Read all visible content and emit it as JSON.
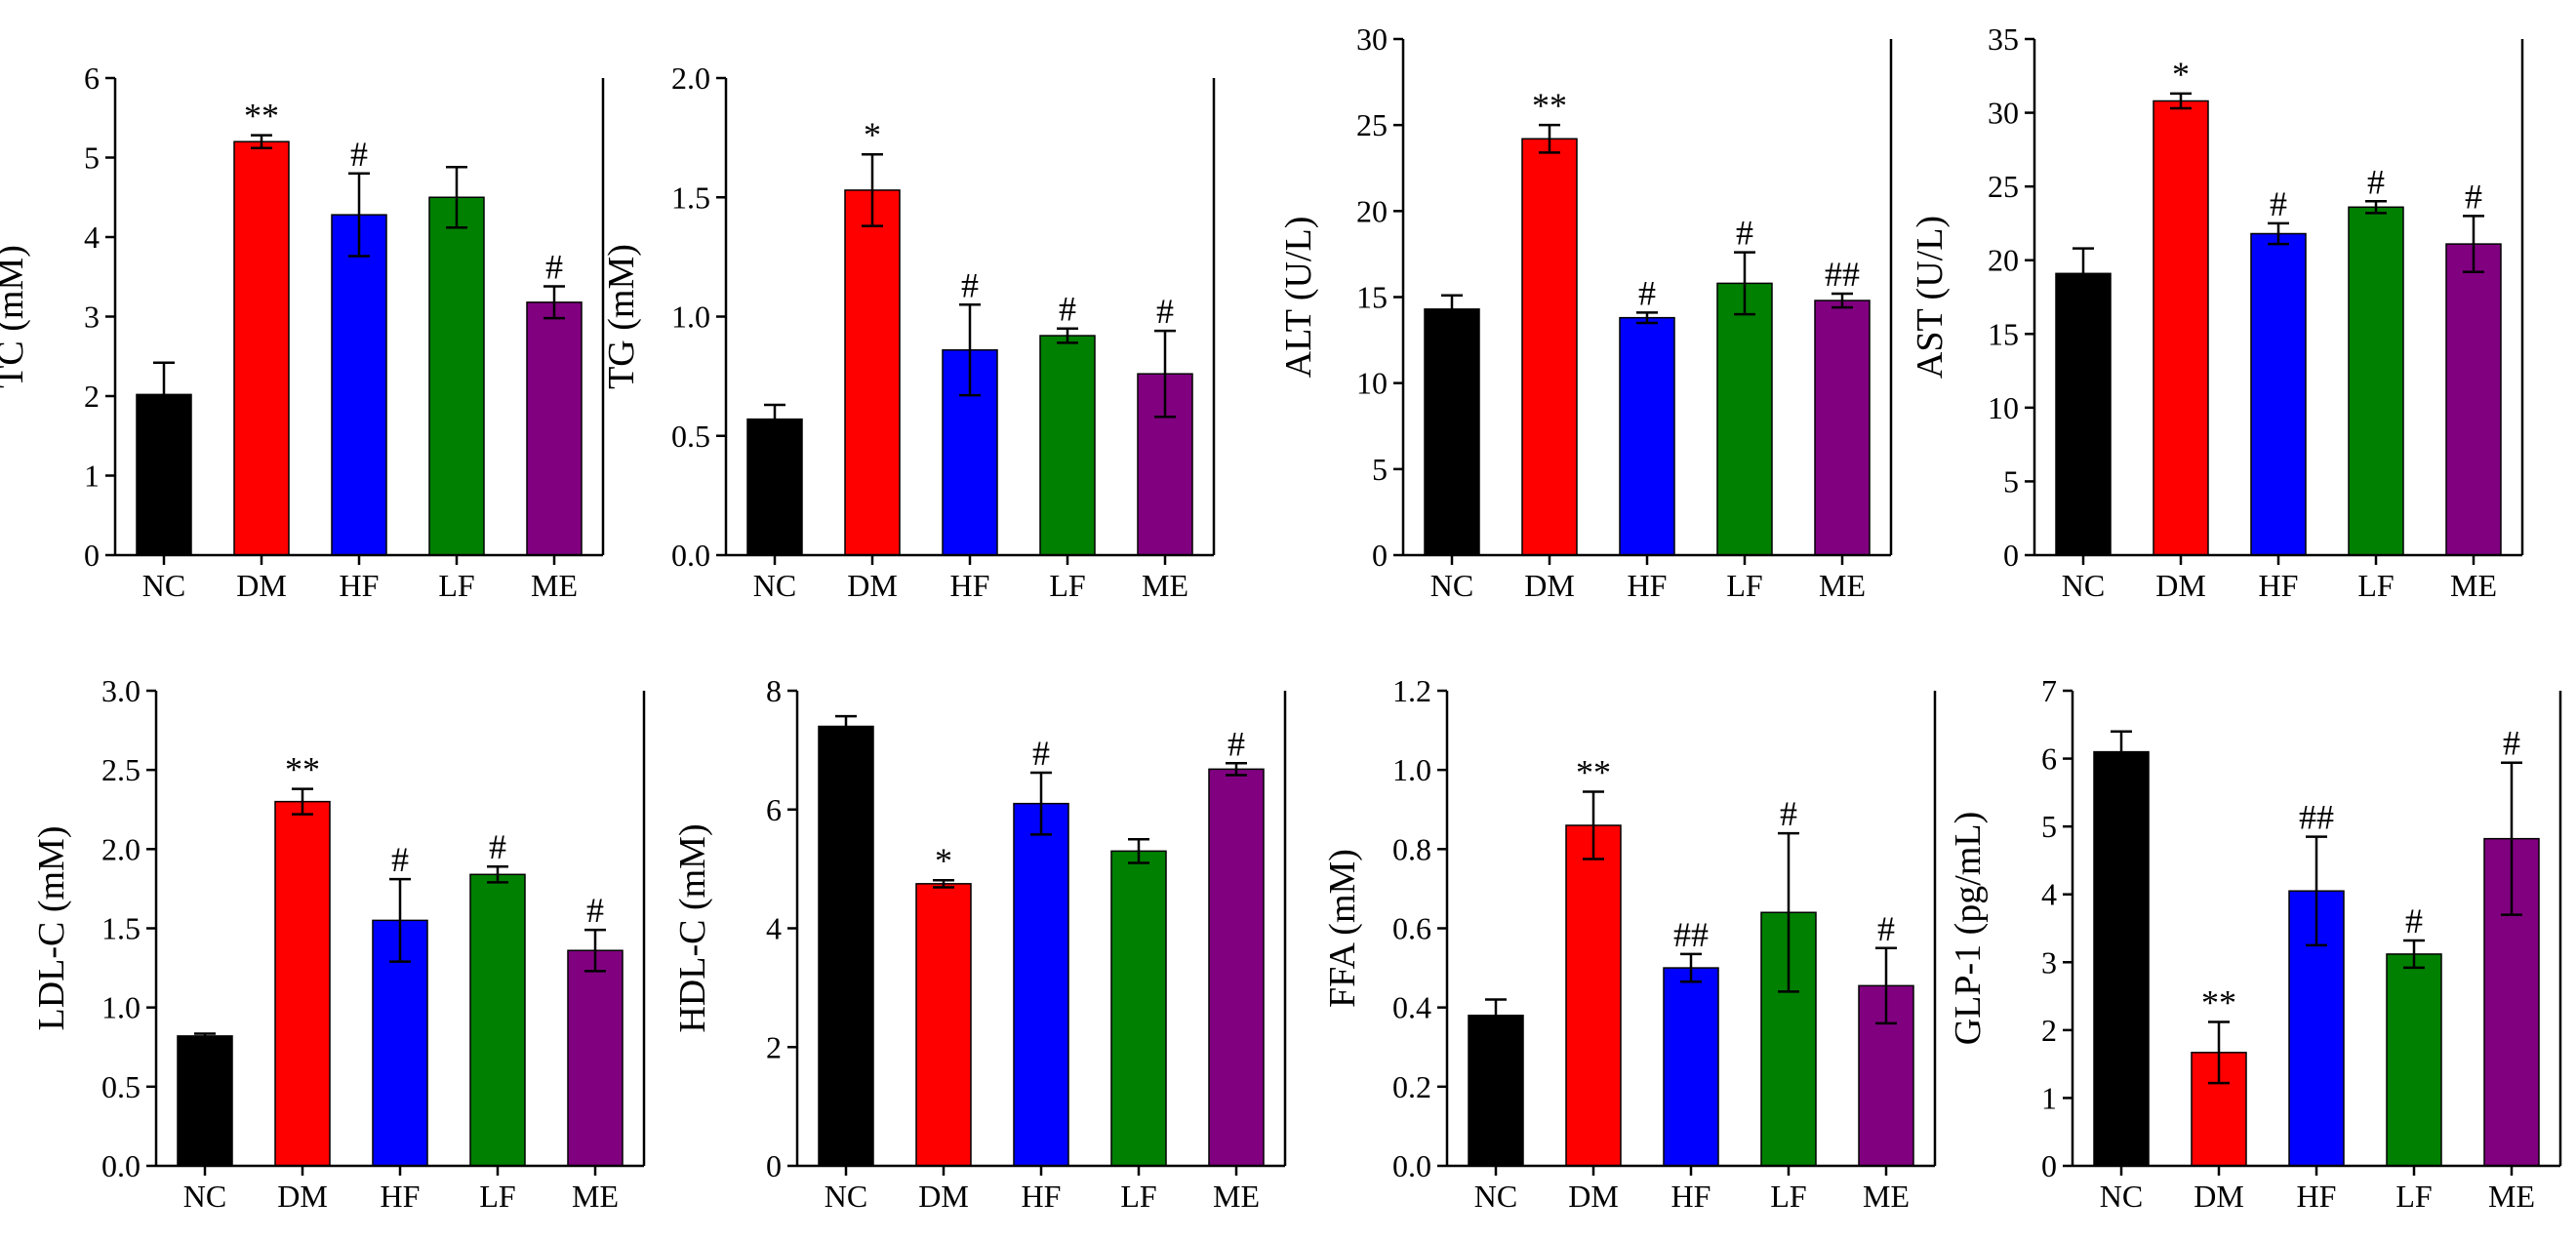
{
  "figure": {
    "colors": {
      "NC": "#000000",
      "DM": "#ff0000",
      "HF": "#0000ff",
      "LF": "#008000",
      "ME": "#800080"
    }
  },
  "chart_data": [
    {
      "type": "bar",
      "ylabel": "TC (mM)",
      "categories": [
        "NC",
        "DM",
        "HF",
        "LF",
        "ME"
      ],
      "values": [
        2.02,
        5.2,
        4.28,
        4.5,
        3.18
      ],
      "errors": [
        0.4,
        0.08,
        0.52,
        0.38,
        0.2
      ],
      "significance": [
        "",
        "**",
        "#",
        "",
        "#"
      ],
      "ylim": [
        0,
        6
      ],
      "yticks": [
        "0",
        "1",
        "2",
        "3",
        "4",
        "5",
        "6"
      ]
    },
    {
      "type": "bar",
      "ylabel": "TG (mM)",
      "categories": [
        "NC",
        "DM",
        "HF",
        "LF",
        "ME"
      ],
      "values": [
        0.57,
        1.53,
        0.86,
        0.92,
        0.76
      ],
      "errors": [
        0.06,
        0.15,
        0.19,
        0.03,
        0.18
      ],
      "significance": [
        "",
        "*",
        "#",
        "#",
        "#"
      ],
      "ylim": [
        0,
        2
      ],
      "yticks": [
        "0.0",
        "0.5",
        "1.0",
        "1.5",
        "2.0"
      ]
    },
    {
      "type": "bar",
      "ylabel": "ALT (U/L)",
      "categories": [
        "NC",
        "DM",
        "HF",
        "LF",
        "ME"
      ],
      "values": [
        14.3,
        24.2,
        13.8,
        15.8,
        14.8
      ],
      "errors": [
        0.8,
        0.8,
        0.3,
        1.8,
        0.4
      ],
      "significance": [
        "",
        "**",
        "#",
        "#",
        "##"
      ],
      "ylim": [
        0,
        30
      ],
      "yticks": [
        "0",
        "5",
        "10",
        "15",
        "20",
        "25",
        "30"
      ]
    },
    {
      "type": "bar",
      "ylabel": "AST (U/L)",
      "categories": [
        "NC",
        "DM",
        "HF",
        "LF",
        "ME"
      ],
      "values": [
        19.1,
        30.8,
        21.8,
        23.6,
        21.1
      ],
      "errors": [
        1.7,
        0.5,
        0.7,
        0.4,
        1.9
      ],
      "significance": [
        "",
        "*",
        "#",
        "#",
        "#"
      ],
      "ylim": [
        0,
        35
      ],
      "yticks": [
        "0",
        "5",
        "10",
        "15",
        "20",
        "25",
        "30",
        "35"
      ]
    },
    {
      "type": "bar",
      "ylabel": "LDL-C (mM)",
      "categories": [
        "NC",
        "DM",
        "HF",
        "LF",
        "ME"
      ],
      "values": [
        0.82,
        2.3,
        1.55,
        1.84,
        1.36
      ],
      "errors": [
        0.015,
        0.08,
        0.26,
        0.05,
        0.13
      ],
      "significance": [
        "",
        "**",
        "#",
        "#",
        "#"
      ],
      "ylim": [
        0,
        3
      ],
      "yticks": [
        "0.0",
        "0.5",
        "1.0",
        "1.5",
        "2.0",
        "2.5",
        "3.0"
      ]
    },
    {
      "type": "bar",
      "ylabel": "HDL-C (mM)",
      "categories": [
        "NC",
        "DM",
        "HF",
        "LF",
        "ME"
      ],
      "values": [
        7.4,
        4.75,
        6.1,
        5.3,
        6.68
      ],
      "errors": [
        0.17,
        0.06,
        0.52,
        0.2,
        0.1
      ],
      "significance": [
        "",
        "*",
        "#",
        "",
        "#"
      ],
      "ylim": [
        0,
        8
      ],
      "yticks": [
        "0",
        "2",
        "4",
        "6",
        "8"
      ]
    },
    {
      "type": "bar",
      "ylabel": "FFA (mM)",
      "categories": [
        "NC",
        "DM",
        "HF",
        "LF",
        "ME"
      ],
      "values": [
        0.38,
        0.86,
        0.5,
        0.64,
        0.455
      ],
      "errors": [
        0.04,
        0.085,
        0.035,
        0.2,
        0.095
      ],
      "significance": [
        "",
        "**",
        "##",
        "#",
        "#"
      ],
      "ylim": [
        0,
        1.2
      ],
      "yticks": [
        "0.0",
        "0.2",
        "0.4",
        "0.6",
        "0.8",
        "1.0",
        "1.2"
      ]
    },
    {
      "type": "bar",
      "ylabel": "GLP-1 (pg/mL)",
      "categories": [
        "NC",
        "DM",
        "HF",
        "LF",
        "ME"
      ],
      "values": [
        6.1,
        1.67,
        4.05,
        3.12,
        4.82
      ],
      "errors": [
        0.3,
        0.45,
        0.8,
        0.2,
        1.12
      ],
      "significance": [
        "",
        "**",
        "##",
        "#",
        "#"
      ],
      "ylim": [
        0,
        7
      ],
      "yticks": [
        "0",
        "1",
        "2",
        "3",
        "4",
        "5",
        "6",
        "7"
      ]
    }
  ]
}
